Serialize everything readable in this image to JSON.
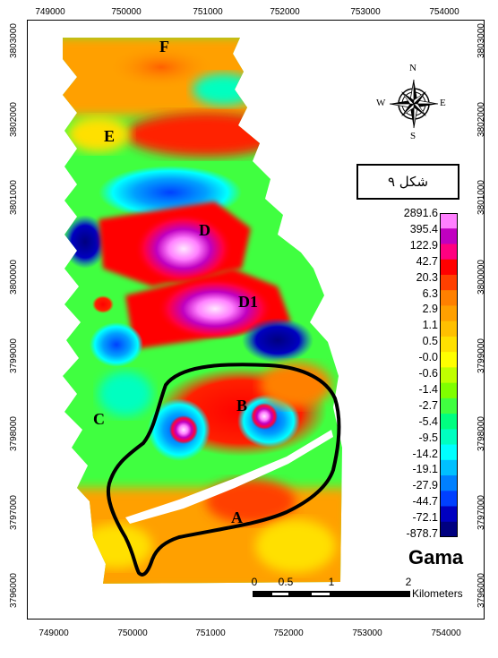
{
  "map": {
    "x_ticks": [
      "749000",
      "750000",
      "751000",
      "752000",
      "753000",
      "754000"
    ],
    "y_ticks": [
      "3803000",
      "3802000",
      "3801000",
      "3800000",
      "3799000",
      "3798000",
      "3797000",
      "3796000"
    ],
    "area_labels": [
      "F",
      "E",
      "D",
      "D1",
      "C",
      "B",
      "A"
    ]
  },
  "compass": {
    "north": "N",
    "south": "S",
    "east": "E",
    "west": "W"
  },
  "caption": "شکل ۹",
  "legend": {
    "title": "Gama",
    "values": [
      "2891.6",
      "395.4",
      "122.9",
      "42.7",
      "20.3",
      "6.3",
      "2.9",
      "1.1",
      "0.5",
      "-0.0",
      "-0.6",
      "-1.4",
      "-2.7",
      "-5.4",
      "-9.5",
      "-14.2",
      "-19.1",
      "-27.9",
      "-44.7",
      "-72.1",
      "-878.7"
    ],
    "colors": [
      "#ff80ff",
      "#c000c0",
      "#ff0080",
      "#ff0000",
      "#ff4000",
      "#ff8000",
      "#ffa000",
      "#ffc000",
      "#ffe000",
      "#ffff00",
      "#c0ff00",
      "#80ff00",
      "#40ff40",
      "#00ff80",
      "#00ffc0",
      "#00ffff",
      "#00c0ff",
      "#0080ff",
      "#0040ff",
      "#0000c0",
      "#000080"
    ]
  },
  "scale_bar": {
    "labels": [
      "0",
      "0.5",
      "1",
      "2"
    ],
    "unit": "Kilometers"
  }
}
